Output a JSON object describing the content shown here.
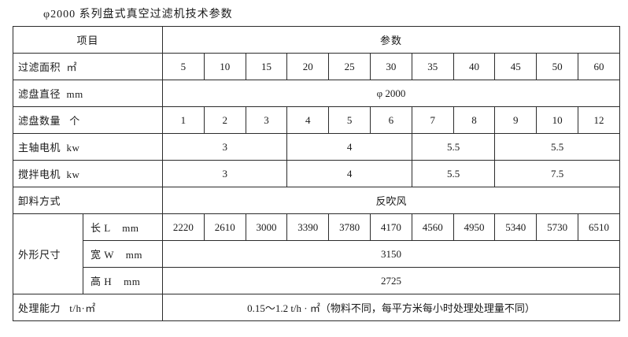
{
  "title": "φ2000 系列盘式真空过滤机技术参数",
  "colors": {
    "border": "#2b2b2b",
    "text": "#1a1a1a",
    "background": "#ffffff"
  },
  "table": {
    "header": {
      "item": "项目",
      "params": "参数"
    },
    "rows": {
      "filter_area": {
        "label": "过滤面积  ㎡",
        "values": [
          "5",
          "10",
          "15",
          "20",
          "25",
          "30",
          "35",
          "40",
          "45",
          "50",
          "60"
        ]
      },
      "disc_diameter": {
        "label": "滤盘直径  mm",
        "value": "φ 2000"
      },
      "disc_count": {
        "label": "滤盘数量   个",
        "values": [
          "1",
          "2",
          "3",
          "4",
          "5",
          "6",
          "7",
          "8",
          "9",
          "10",
          "12"
        ]
      },
      "main_motor": {
        "label": "主轴电机  kw",
        "values": [
          "3",
          "4",
          "5.5",
          "5.5"
        ]
      },
      "agitator_motor": {
        "label": "搅拌电机  kw",
        "values": [
          "3",
          "4",
          "5.5",
          "7.5"
        ]
      },
      "discharge": {
        "label": "卸料方式",
        "value": "反吹风"
      },
      "dimensions": {
        "label": "外形尺寸",
        "length": {
          "label": "长 L    mm",
          "values": [
            "2220",
            "2610",
            "3000",
            "3390",
            "3780",
            "4170",
            "4560",
            "4950",
            "5340",
            "5730",
            "6510"
          ]
        },
        "width": {
          "label": "宽 W    mm",
          "value": "3150"
        },
        "height": {
          "label": "高 H    mm",
          "value": "2725"
        }
      },
      "capacity": {
        "label": "处理能力   t/h·㎡",
        "value": "0.15～1.2 t/h · ㎡（物料不同，每平方米每小时处理处理量不同）"
      }
    }
  }
}
